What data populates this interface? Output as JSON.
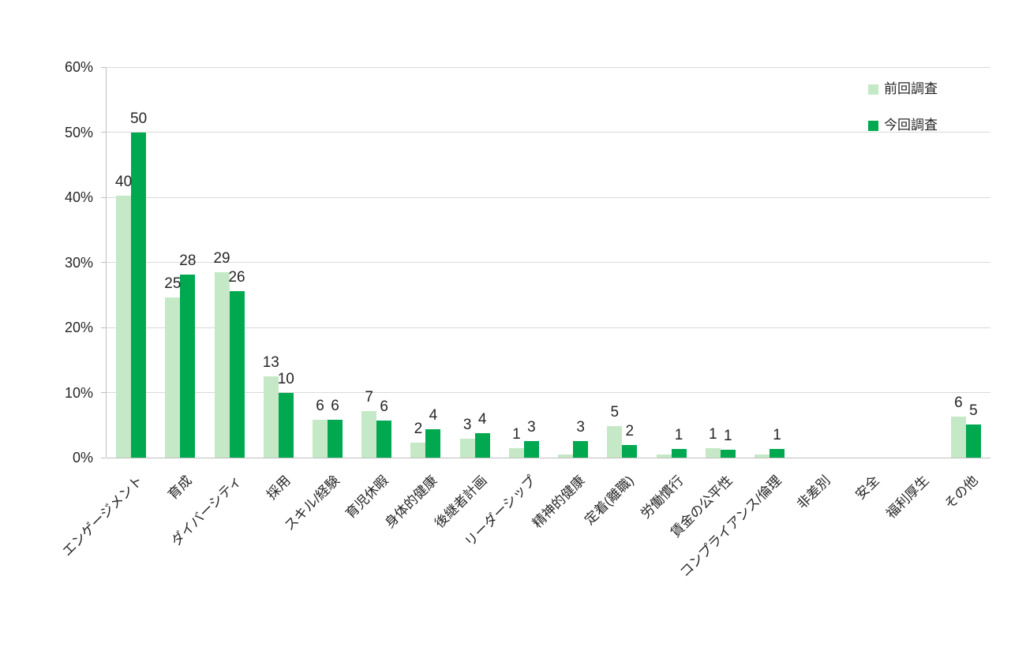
{
  "chart_data": {
    "type": "bar",
    "title": "",
    "categories": [
      "エンゲージメント",
      "育成",
      "ダイバーシティ",
      "採用",
      "スキル/経験",
      "育児休暇",
      "身体的健康",
      "後継者計画",
      "リーダーシップ",
      "精神的健康",
      "定着(離職)",
      "労働慣行",
      "賃金の公平性",
      "コンプライアンス/倫理",
      "非差別",
      "安全",
      "福利厚生",
      "その他"
    ],
    "series": [
      {
        "name": "前回調査",
        "color": "#c5e9c6",
        "values": [
          40.3,
          24.6,
          28.5,
          12.5,
          5.8,
          7.2,
          2.3,
          2.9,
          1.4,
          0.5,
          4.8,
          0.5,
          1.4,
          0.5,
          0,
          0,
          0,
          6.3
        ],
        "labels": [
          "40",
          "25",
          "29",
          "13",
          "6",
          "7",
          "2",
          "3",
          "1",
          "",
          "5",
          "",
          "1",
          "",
          "",
          "",
          "",
          "6"
        ]
      },
      {
        "name": "今回調査",
        "color": "#00a950",
        "values": [
          50.0,
          28.1,
          25.6,
          10.0,
          5.8,
          5.7,
          4.4,
          3.8,
          2.5,
          2.5,
          2.0,
          1.3,
          1.2,
          1.3,
          0,
          0,
          0,
          5.1
        ],
        "labels": [
          "50",
          "28",
          "26",
          "10",
          "6",
          "6",
          "4",
          "4",
          "3",
          "3",
          "2",
          "1",
          "1",
          "1",
          "",
          "",
          "",
          "5"
        ]
      }
    ],
    "y_axis": {
      "min": 0,
      "max": 60,
      "tick_step": 10,
      "tick_labels": [
        "0%",
        "10%",
        "20%",
        "30%",
        "40%",
        "50%",
        "60%"
      ]
    },
    "grid": true,
    "legend_position": "top-right",
    "grid_color": "#d9d9d9",
    "axis_color": "#bfbfbf",
    "text_color": "#262626"
  }
}
